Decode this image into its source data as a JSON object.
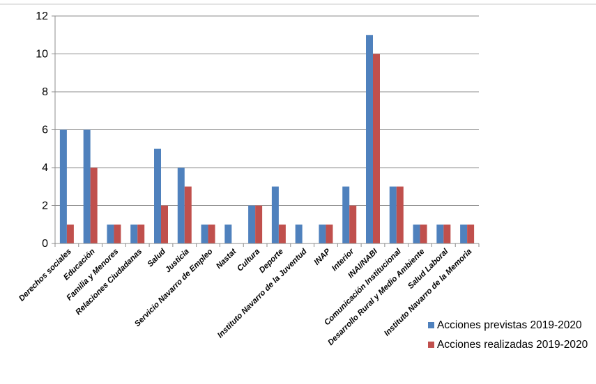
{
  "chart_data": {
    "type": "bar",
    "categories": [
      "Derechos sociales",
      "Educación",
      "Familia y Menores",
      "Relaciones Ciudadanas",
      "Salud",
      "Justicia",
      "Servicio Navarro de Empleo",
      "Nastat",
      "Cultura",
      "Deporte",
      "Instituto Navarro de la Juventud",
      "INAP",
      "Interior",
      "INAI/NABI",
      "Comunicación Institucional",
      "Desarrollo Rural y Medio Ambiente",
      "Salud Laboral",
      "Instituto Navarro de la Memoria"
    ],
    "series": [
      {
        "name": "Acciones previstas 2019-2020",
        "color": "#4F81BD",
        "values": [
          6,
          6,
          1,
          1,
          5,
          4,
          1,
          1,
          2,
          3,
          1,
          1,
          3,
          11,
          3,
          1,
          1,
          1
        ]
      },
      {
        "name": "Acciones realizadas 2019-2020",
        "color": "#C0504D",
        "values": [
          1,
          4,
          1,
          1,
          2,
          3,
          1,
          0,
          2,
          1,
          0,
          1,
          2,
          10,
          3,
          1,
          1,
          1
        ]
      }
    ],
    "yticks": [
      0,
      2,
      4,
      6,
      8,
      10,
      12
    ],
    "ylim": [
      0,
      12
    ],
    "grid": true,
    "legend_position": "bottom-right"
  }
}
